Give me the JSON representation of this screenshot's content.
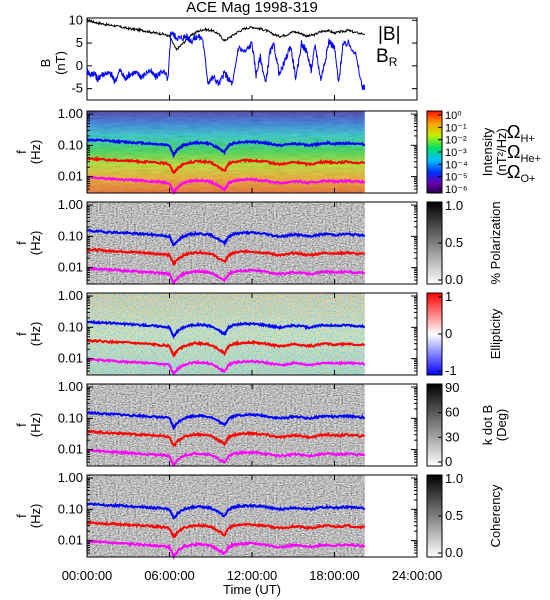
{
  "title": "ACE Mag 1998-319",
  "colors": {
    "total_field": "#000000",
    "radial_field": "#0000ff",
    "omega_h": "#0000ff",
    "omega_he": "#ff0000",
    "omega_o": "#ff00ff"
  },
  "chart_data": [
    {
      "type": "line",
      "panel": "magnetic-field",
      "ylabel": "B",
      "yunit": "(nT)",
      "ylim": [
        -7.5,
        10.5
      ],
      "yticks": [
        10,
        5,
        0,
        -5
      ],
      "xlim_hours": [
        0,
        24
      ],
      "data_end_hour": 20.2,
      "series": [
        {
          "name": "|B|",
          "color": "#000000",
          "x": [
            0,
            0.5,
            1,
            1.5,
            2,
            2.5,
            3,
            3.5,
            4,
            4.5,
            5,
            5.5,
            6,
            6.5,
            7,
            7.5,
            8,
            8.5,
            9,
            9.5,
            10,
            10.5,
            11,
            11.5,
            12,
            12.5,
            13,
            13.5,
            14,
            14.5,
            15,
            15.5,
            16,
            16.5,
            17,
            17.5,
            18,
            18.5,
            19,
            19.5,
            20.2
          ],
          "y": [
            10,
            9.6,
            9.3,
            9,
            8.8,
            8.5,
            8.2,
            8,
            7.8,
            7.5,
            7.2,
            7,
            6.5,
            3.5,
            5,
            6.5,
            7.5,
            8,
            7.8,
            7.2,
            5.5,
            6.5,
            7.5,
            8.2,
            8.5,
            8.2,
            7.8,
            7,
            6.5,
            6.8,
            7.5,
            7.2,
            6.5,
            6.8,
            7.5,
            7.8,
            7.2,
            7.5,
            7.8,
            7.3,
            7
          ]
        },
        {
          "name": "B_R",
          "color": "#0000ff",
          "x": [
            0,
            0.25,
            0.5,
            0.8,
            1,
            1.4,
            1.8,
            2,
            2.4,
            2.8,
            3,
            3.4,
            3.8,
            4,
            4.5,
            5,
            5.5,
            5.9,
            6.1,
            6.4,
            6.8,
            7.2,
            7.6,
            8,
            8.4,
            8.8,
            9.2,
            9.6,
            10,
            10.3,
            10.6,
            11,
            11.5,
            12,
            12.3,
            12.6,
            13,
            13.3,
            13.6,
            14,
            14.4,
            14.8,
            15.2,
            15.6,
            16,
            16.3,
            16.6,
            17,
            17.3,
            17.6,
            18,
            18.3,
            18.6,
            19,
            19.5,
            20,
            20.2
          ],
          "y": [
            -1,
            -2,
            -1.5,
            -3,
            -2,
            -1.5,
            -2,
            -3.5,
            -1,
            -3,
            -2,
            -1.5,
            -2,
            -2.5,
            -1,
            -2.5,
            -1,
            -3,
            7.5,
            6.5,
            6,
            6.5,
            5.5,
            6.5,
            6,
            -3.5,
            -2.5,
            -4,
            -1.5,
            -3,
            -4,
            4,
            3,
            5,
            -2,
            2,
            -4,
            3,
            4.5,
            -2,
            1,
            4.5,
            -3,
            5,
            3,
            -1,
            4.5,
            -3,
            1,
            5.5,
            4,
            -4,
            4.5,
            5,
            3,
            -4.5,
            -5
          ]
        }
      ]
    },
    {
      "type": "heatmap",
      "panel": "power-spectrum",
      "ylabel": "f",
      "yunit": "(Hz)",
      "yscale": "log",
      "ylim": [
        0.003,
        1.25
      ],
      "yticks": [
        "1.00",
        "0.10",
        "0.01"
      ],
      "colorbar_label": "Intensity",
      "colorbar_unit": "(nT²/Hz)",
      "colorbar_ticks": [
        "10⁰",
        "10⁻¹",
        "10⁻²",
        "10⁻³",
        "10⁻⁴",
        "10⁻⁵",
        "10⁻⁶"
      ],
      "colorbar_scale": "log",
      "colorbar_range": [
        1e-07,
        1
      ]
    },
    {
      "type": "heatmap",
      "panel": "polarization",
      "ylabel": "f",
      "yunit": "(Hz)",
      "yscale": "log",
      "ylim": [
        0.003,
        1.25
      ],
      "yticks": [
        "1.00",
        "0.10",
        "0.01"
      ],
      "colorbar_label": "% Polarization",
      "colorbar_ticks": [
        "1.0",
        "0.5",
        "0.0"
      ],
      "colorbar_range": [
        0,
        1
      ]
    },
    {
      "type": "heatmap",
      "panel": "ellipticity",
      "ylabel": "f",
      "yunit": "(Hz)",
      "yscale": "log",
      "ylim": [
        0.003,
        1.25
      ],
      "yticks": [
        "1.00",
        "0.10",
        "0.01"
      ],
      "colorbar_label": "Ellipticity",
      "colorbar_ticks": [
        "1",
        "0",
        "-1"
      ],
      "colorbar_range": [
        -1,
        1
      ]
    },
    {
      "type": "heatmap",
      "panel": "wave-normal-angle",
      "ylabel": "f",
      "yunit": "(Hz)",
      "yscale": "log",
      "ylim": [
        0.003,
        1.25
      ],
      "yticks": [
        "1.00",
        "0.10",
        "0.01"
      ],
      "colorbar_label": "k dot B",
      "colorbar_unit": "(Deg)",
      "colorbar_ticks": [
        "90",
        "60",
        "30",
        "0"
      ],
      "colorbar_range": [
        0,
        90
      ]
    },
    {
      "type": "heatmap",
      "panel": "coherency",
      "ylabel": "f",
      "yunit": "(Hz)",
      "yscale": "log",
      "ylim": [
        0.003,
        1.25
      ],
      "yticks": [
        "1.00",
        "0.10",
        "0.01"
      ],
      "colorbar_label": "Coherency",
      "colorbar_ticks": [
        "1.0",
        "0.5",
        "0.0"
      ],
      "colorbar_range": [
        0,
        1
      ]
    }
  ],
  "gyrofrequency_overlays": {
    "x_hours": [
      0,
      0.5,
      1,
      1.5,
      2,
      2.5,
      3,
      3.5,
      4,
      4.5,
      5,
      5.5,
      6,
      6.3,
      6.6,
      7,
      7.5,
      8,
      8.5,
      9,
      9.5,
      10,
      10.3,
      10.6,
      11,
      11.5,
      12,
      12.5,
      13,
      13.5,
      14,
      14.5,
      15,
      15.5,
      16,
      16.5,
      17,
      17.5,
      18,
      18.5,
      19,
      19.5,
      20.2
    ],
    "omega_h_hz": [
      0.152,
      0.147,
      0.142,
      0.137,
      0.134,
      0.13,
      0.126,
      0.122,
      0.119,
      0.115,
      0.11,
      0.107,
      0.1,
      0.05,
      0.075,
      0.1,
      0.115,
      0.122,
      0.119,
      0.11,
      0.084,
      0.06,
      0.1,
      0.115,
      0.125,
      0.13,
      0.13,
      0.125,
      0.119,
      0.107,
      0.1,
      0.104,
      0.115,
      0.11,
      0.1,
      0.104,
      0.115,
      0.119,
      0.11,
      0.115,
      0.119,
      0.112,
      0.107
    ],
    "omega_he_hz": [
      0.038,
      0.037,
      0.036,
      0.034,
      0.034,
      0.033,
      0.032,
      0.031,
      0.03,
      0.029,
      0.028,
      0.027,
      0.025,
      0.013,
      0.019,
      0.025,
      0.029,
      0.031,
      0.03,
      0.028,
      0.021,
      0.015,
      0.025,
      0.029,
      0.031,
      0.033,
      0.033,
      0.031,
      0.03,
      0.027,
      0.025,
      0.026,
      0.029,
      0.028,
      0.025,
      0.026,
      0.029,
      0.03,
      0.028,
      0.029,
      0.03,
      0.028,
      0.027
    ],
    "omega_o_hz": [
      0.0095,
      0.0092,
      0.0089,
      0.0086,
      0.0084,
      0.0081,
      0.0079,
      0.0076,
      0.0074,
      0.0072,
      0.0069,
      0.0067,
      0.0063,
      0.0031,
      0.0047,
      0.0063,
      0.0072,
      0.0076,
      0.0074,
      0.0069,
      0.0052,
      0.0038,
      0.0063,
      0.0072,
      0.0078,
      0.0081,
      0.0081,
      0.0078,
      0.0074,
      0.0067,
      0.0063,
      0.0065,
      0.0072,
      0.0069,
      0.0063,
      0.0065,
      0.0072,
      0.0074,
      0.0069,
      0.0072,
      0.0074,
      0.007,
      0.0067
    ]
  },
  "legend": {
    "b_total": "|B|",
    "b_radial": "B",
    "b_radial_sub": "R",
    "omega_symbol": "Ω",
    "omega_h_sub": "H+",
    "omega_he_sub": "He+",
    "omega_o_sub": "O+"
  },
  "x_axis": {
    "tick_labels": [
      "00:00:00",
      "06:00:00",
      "12:00:00",
      "18:00:00",
      "24:00:00"
    ],
    "label": "Time (UT)"
  }
}
